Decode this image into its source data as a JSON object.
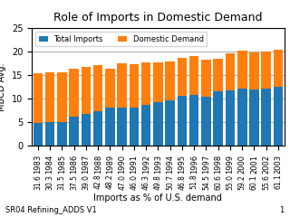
{
  "chart_data": {
    "type": "bar",
    "stacked": true,
    "title": "Role of Imports in Domestic Demand",
    "ylabel": "MBCD Avg.",
    "xlabel": "Imports as % of U.S. demand",
    "categories": [
      "1983",
      "1984",
      "1985",
      "1986",
      "1987",
      "1988",
      "1989",
      "1990",
      "1991",
      "1992",
      "1993",
      "1994",
      "1995",
      "1996",
      "1997",
      "1998",
      "1999",
      "2000",
      "2001",
      "2002",
      "2003"
    ],
    "series": [
      {
        "name": "Total Imports",
        "values": [
          4.8,
          4.9,
          4.9,
          6.1,
          6.7,
          7.3,
          8.1,
          8.1,
          8.0,
          8.7,
          9.2,
          9.7,
          10.5,
          10.7,
          10.3,
          11.5,
          11.8,
          12.1,
          11.9,
          12.2,
          12.5
        ]
      },
      {
        "name": "Domestic Demand",
        "values": [
          10.5,
          10.7,
          10.7,
          10.2,
          10.1,
          9.8,
          8.3,
          9.5,
          9.3,
          9.0,
          8.5,
          8.2,
          8.2,
          8.3,
          8.0,
          7.0,
          7.8,
          8.2,
          7.9,
          7.8,
          7.9
        ]
      }
    ],
    "annotations": [
      {
        "category": "1983",
        "text": "31.6"
      },
      {
        "category": "1984",
        "text": "30.3"
      },
      {
        "category": "1985",
        "text": "31.5"
      },
      {
        "category": "1986",
        "text": "37.5"
      },
      {
        "category": "1987",
        "text": "39.0"
      },
      {
        "category": "1988",
        "text": "42.8"
      },
      {
        "category": "1989",
        "text": "48.2"
      },
      {
        "category": "1990",
        "text": "47.0"
      },
      {
        "category": "1991",
        "text": "46.0"
      },
      {
        "category": "1992",
        "text": "46.3"
      },
      {
        "category": "1993",
        "text": "49.8"
      },
      {
        "category": "1994",
        "text": "50.7"
      },
      {
        "category": "1995",
        "text": "46.8"
      },
      {
        "category": "1996",
        "text": "51.8"
      },
      {
        "category": "1997",
        "text": "54.5"
      },
      {
        "category": "1998",
        "text": "60.6"
      },
      {
        "category": "1999",
        "text": "55.0"
      },
      {
        "category": "2000",
        "text": "59.2"
      },
      {
        "category": "2001",
        "text": "60.1"
      },
      {
        "category": "2002",
        "text": "55.6"
      },
      {
        "category": "2003",
        "text": "61.1"
      }
    ],
    "footer_left": "SR04 Refining_ADDS V1",
    "footer_right": "1",
    "ylim": [
      0,
      25
    ],
    "yticks": [
      0,
      5,
      10,
      15,
      20,
      25
    ],
    "grid": true,
    "legend": "upper left"
  }
}
